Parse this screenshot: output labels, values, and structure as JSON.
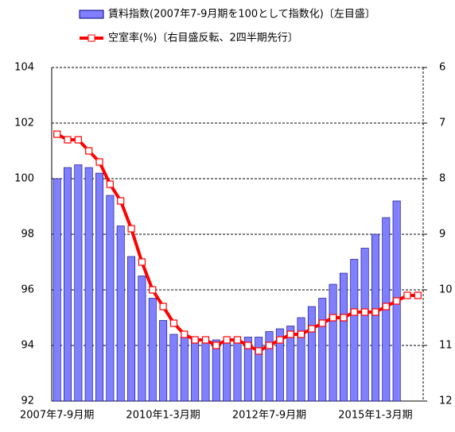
{
  "chart_data": {
    "type": "bar_line",
    "categories": [
      "2007年7-9月期",
      null,
      null,
      null,
      null,
      null,
      null,
      null,
      null,
      null,
      "2010年1-3月期",
      null,
      null,
      null,
      null,
      null,
      null,
      null,
      null,
      null,
      "2012年7-9月期",
      null,
      null,
      null,
      null,
      null,
      null,
      null,
      null,
      null,
      "2015年1-3月期",
      null,
      null,
      null,
      null
    ],
    "series": [
      {
        "name": "賃料指数(2007年7-9月期を100として指数化)〔左目盛〕",
        "type": "bar",
        "color": "#8080ff",
        "values": [
          100.0,
          100.4,
          100.5,
          100.4,
          100.2,
          99.4,
          98.3,
          97.2,
          96.5,
          95.7,
          94.9,
          94.4,
          94.3,
          94.2,
          94.1,
          94.2,
          94.1,
          94.2,
          94.3,
          94.3,
          94.5,
          94.6,
          94.7,
          95.0,
          95.4,
          95.7,
          96.2,
          96.6,
          97.1,
          97.5,
          98.0,
          98.6,
          99.2,
          null,
          null
        ]
      },
      {
        "name": "空室率(%)〔右目盛反転、2四半期先行〕",
        "type": "line",
        "axis": "y2",
        "color": "#ff0000",
        "values": [
          7.2,
          7.3,
          7.3,
          7.5,
          7.7,
          8.1,
          8.4,
          8.9,
          9.5,
          10.0,
          10.3,
          10.6,
          10.8,
          10.9,
          10.9,
          11.0,
          10.9,
          10.9,
          11.0,
          11.1,
          11.0,
          10.9,
          10.8,
          10.8,
          10.7,
          10.6,
          10.5,
          10.5,
          10.4,
          10.4,
          10.4,
          10.3,
          10.2,
          10.1,
          10.1
        ]
      }
    ],
    "ylim": [
      92,
      104
    ],
    "yticks": [
      92,
      94,
      96,
      98,
      100,
      102,
      104
    ],
    "y2lim": [
      12,
      6
    ],
    "y2ticks": [
      6,
      7,
      8,
      9,
      10,
      11,
      12
    ],
    "y2_inverted": true,
    "grid": true
  }
}
